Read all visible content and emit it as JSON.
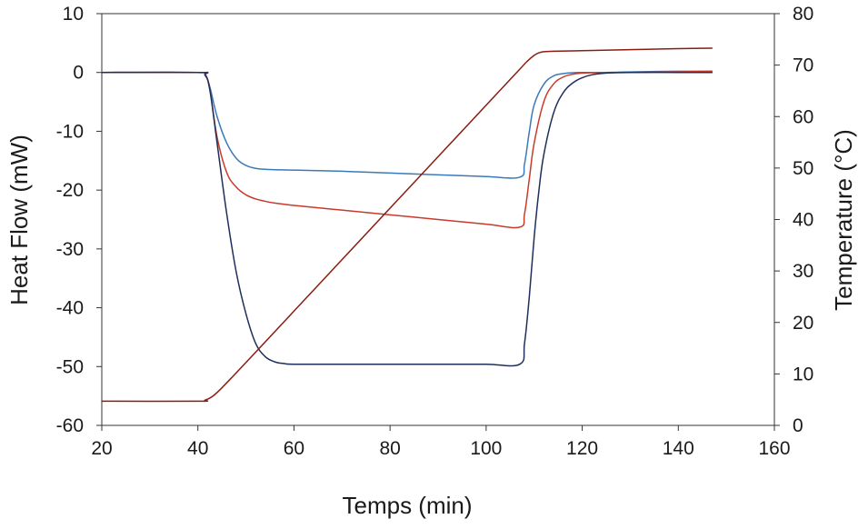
{
  "chart_data": {
    "type": "line",
    "xlabel": "Temps (min)",
    "ylabel": "Heat Flow (mW)",
    "y2label": "Temperature (°C)",
    "xlim": [
      20,
      160
    ],
    "ylim": [
      -60,
      10
    ],
    "y2lim": [
      0,
      80
    ],
    "xticks": [
      20,
      40,
      60,
      80,
      100,
      120,
      140,
      160
    ],
    "yticks": [
      10,
      0,
      -10,
      -20,
      -30,
      -40,
      -50,
      -60
    ],
    "y2ticks": [
      80,
      70,
      60,
      50,
      40,
      30,
      20,
      10,
      0
    ],
    "grid": false,
    "legend": "none",
    "series": [
      {
        "axis": "left",
        "color": "#3a7ab8",
        "x": [
          20,
          40,
          41.5,
          42.5,
          44,
          46,
          48,
          50,
          52,
          55,
          60,
          70,
          80,
          90,
          100,
          107,
          108,
          109,
          110,
          112,
          114,
          116,
          118,
          120,
          125,
          130,
          140,
          147
        ],
        "y": [
          0,
          0,
          -0.3,
          -2.5,
          -7.5,
          -12,
          -14.6,
          -15.8,
          -16.3,
          -16.5,
          -16.6,
          -16.8,
          -17.1,
          -17.4,
          -17.7,
          -17.8,
          -15.5,
          -10,
          -5.5,
          -2,
          -0.6,
          -0.2,
          -0.05,
          0,
          0,
          0.1,
          0.2,
          0.2
        ]
      },
      {
        "axis": "left",
        "color": "#c83a2c",
        "x": [
          20,
          40,
          41.5,
          42.5,
          44,
          46,
          48,
          50,
          52,
          54,
          56,
          60,
          70,
          80,
          90,
          100,
          107,
          108,
          109,
          110,
          112,
          114,
          116,
          118,
          120,
          125,
          130,
          140,
          147
        ],
        "y": [
          0,
          0,
          -0.3,
          -3,
          -11,
          -17,
          -19.5,
          -20.8,
          -21.5,
          -21.9,
          -22.2,
          -22.6,
          -23.4,
          -24.2,
          -25,
          -25.8,
          -26.3,
          -24,
          -18,
          -12,
          -5,
          -2,
          -0.8,
          -0.3,
          -0.1,
          0,
          0,
          0.1,
          0.2
        ]
      },
      {
        "axis": "left",
        "color": "#1e2f5c",
        "x": [
          20,
          40,
          41.5,
          42.5,
          44,
          46,
          48,
          50,
          52,
          54,
          56,
          58,
          60,
          70,
          80,
          90,
          100,
          107,
          108,
          109,
          110,
          111,
          112,
          114,
          116,
          118,
          120,
          122,
          125,
          130,
          140,
          147
        ],
        "y": [
          0,
          0,
          -0.5,
          -3,
          -12,
          -24,
          -34,
          -41,
          -46,
          -48.3,
          -49.2,
          -49.5,
          -49.6,
          -49.6,
          -49.6,
          -49.6,
          -49.6,
          -49.6,
          -46,
          -38,
          -28,
          -20,
          -14,
          -7,
          -3.5,
          -1.8,
          -0.9,
          -0.4,
          -0.1,
          0,
          0,
          0
        ]
      },
      {
        "axis": "right",
        "color": "#8b1c12",
        "x": [
          20,
          40,
          41.5,
          43,
          45,
          50,
          60,
          70,
          80,
          90,
          100,
          107,
          108.5,
          110,
          111,
          112,
          114,
          120,
          130,
          140,
          147
        ],
        "y": [
          4.7,
          4.7,
          4.9,
          5.6,
          7.3,
          12.2,
          22.2,
          32.2,
          42.2,
          52.2,
          62.2,
          69.2,
          70.7,
          71.9,
          72.4,
          72.6,
          72.7,
          72.8,
          73,
          73.2,
          73.3
        ]
      }
    ]
  }
}
